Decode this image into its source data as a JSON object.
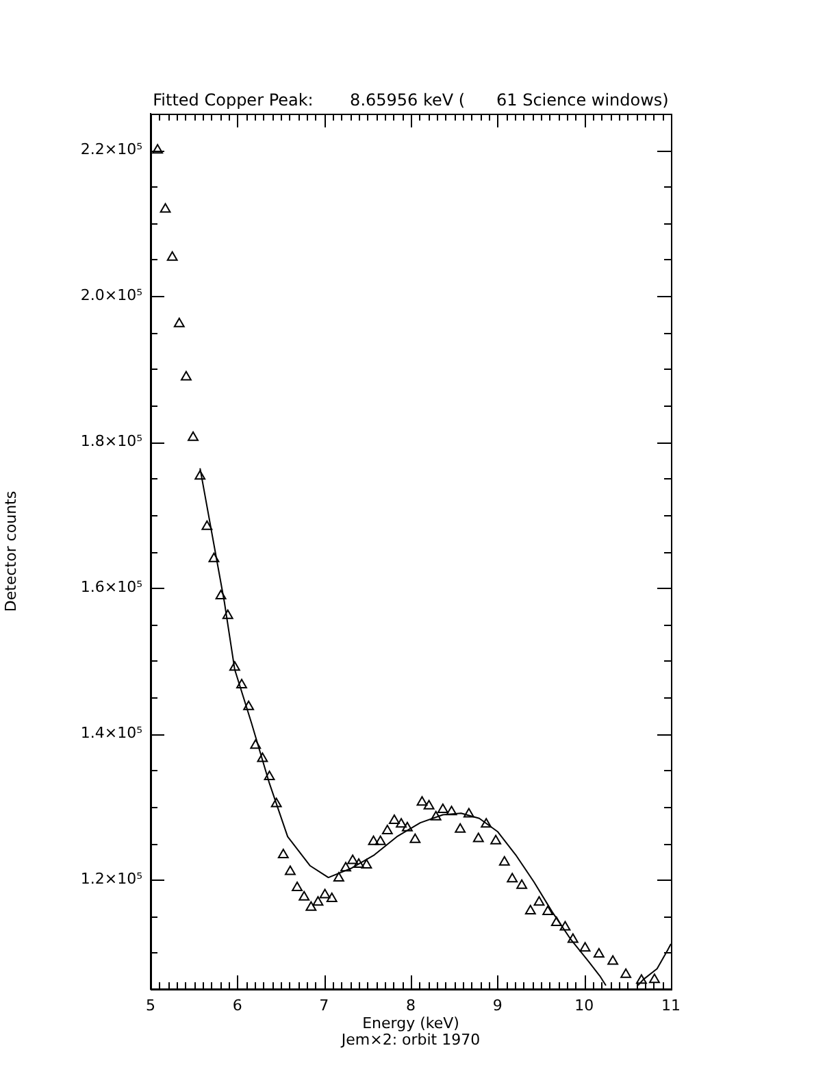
{
  "chart_data": {
    "type": "scatter",
    "title": "Fitted Copper Peak:       8.65956 keV (      61 Science windows)",
    "xlabel": "Energy (keV)",
    "ylabel": "Detector counts",
    "annotations": [
      "Jem×2: orbit 1970"
    ],
    "xlim": [
      5,
      11
    ],
    "ylim": [
      105000,
      225000
    ],
    "xticks": [
      5,
      {
        "value": 5.1,
        "label": null
      },
      {
        "value": 5.2,
        "label": null
      },
      {
        "value": 5.3,
        "label": null
      },
      {
        "value": 5.4,
        "label": null
      },
      {
        "value": 5.5,
        "label": null
      },
      {
        "value": 5.6,
        "label": null
      },
      {
        "value": 5.7,
        "label": null
      },
      {
        "value": 5.8,
        "label": null
      },
      {
        "value": 5.9,
        "label": null
      },
      6,
      {
        "value": 6.1,
        "label": null
      },
      {
        "value": 6.2,
        "label": null
      },
      {
        "value": 6.3,
        "label": null
      },
      {
        "value": 6.4,
        "label": null
      },
      {
        "value": 6.5,
        "label": null
      },
      {
        "value": 6.6,
        "label": null
      },
      {
        "value": 6.7,
        "label": null
      },
      {
        "value": 6.8,
        "label": null
      },
      {
        "value": 6.9,
        "label": null
      },
      7,
      {
        "value": 7.1,
        "label": null
      },
      {
        "value": 7.2,
        "label": null
      },
      {
        "value": 7.3,
        "label": null
      },
      {
        "value": 7.4,
        "label": null
      },
      {
        "value": 7.5,
        "label": null
      },
      {
        "value": 7.6,
        "label": null
      },
      {
        "value": 7.7,
        "label": null
      },
      {
        "value": 7.8,
        "label": null
      },
      {
        "value": 7.9,
        "label": null
      },
      8,
      {
        "value": 8.1,
        "label": null
      },
      {
        "value": 8.2,
        "label": null
      },
      {
        "value": 8.3,
        "label": null
      },
      {
        "value": 8.4,
        "label": null
      },
      {
        "value": 8.5,
        "label": null
      },
      {
        "value": 8.6,
        "label": null
      },
      {
        "value": 8.7,
        "label": null
      },
      {
        "value": 8.8,
        "label": null
      },
      {
        "value": 8.9,
        "label": null
      },
      9,
      {
        "value": 9.1,
        "label": null
      },
      {
        "value": 9.2,
        "label": null
      },
      {
        "value": 9.3,
        "label": null
      },
      {
        "value": 9.4,
        "label": null
      },
      {
        "value": 9.5,
        "label": null
      },
      {
        "value": 9.6,
        "label": null
      },
      {
        "value": 9.7,
        "label": null
      },
      {
        "value": 9.8,
        "label": null
      },
      {
        "value": 9.9,
        "label": null
      },
      10,
      {
        "value": 10.1,
        "label": null
      },
      {
        "value": 10.2,
        "label": null
      },
      {
        "value": 10.3,
        "label": null
      },
      {
        "value": 10.4,
        "label": null
      },
      {
        "value": 10.5,
        "label": null
      },
      {
        "value": 10.6,
        "label": null
      },
      {
        "value": 10.7,
        "label": null
      },
      {
        "value": 10.8,
        "label": null
      },
      {
        "value": 10.9,
        "label": null
      },
      11
    ],
    "yticks": [
      {
        "value": 110000,
        "label": null
      },
      {
        "value": 115000,
        "label": null
      },
      {
        "value": 120000,
        "label": "1.2×10⁵"
      },
      {
        "value": 125000,
        "label": null
      },
      {
        "value": 130000,
        "label": null
      },
      {
        "value": 135000,
        "label": null
      },
      {
        "value": 140000,
        "label": "1.4×10⁵"
      },
      {
        "value": 145000,
        "label": null
      },
      {
        "value": 150000,
        "label": null
      },
      {
        "value": 155000,
        "label": null
      },
      {
        "value": 160000,
        "label": "1.6×10⁵"
      },
      {
        "value": 165000,
        "label": null
      },
      {
        "value": 170000,
        "label": null
      },
      {
        "value": 175000,
        "label": null
      },
      {
        "value": 180000,
        "label": "1.8×10⁵"
      },
      {
        "value": 185000,
        "label": null
      },
      {
        "value": 190000,
        "label": null
      },
      {
        "value": 195000,
        "label": null
      },
      {
        "value": 200000,
        "label": "2.0×10⁵"
      },
      {
        "value": 205000,
        "label": null
      },
      {
        "value": 210000,
        "label": null
      },
      {
        "value": 215000,
        "label": null
      },
      {
        "value": 220000,
        "label": "2.2×10⁵"
      }
    ],
    "grid": false,
    "legend": false,
    "series": [
      {
        "type": "scatter",
        "marker": "triangle",
        "color": "#000000",
        "x": [
          5.08,
          5.17,
          5.25,
          5.33,
          5.41,
          5.49,
          5.57,
          5.65,
          5.73,
          5.81,
          5.89,
          5.97,
          6.05,
          6.13,
          6.21,
          6.29,
          6.37,
          6.45,
          6.53,
          6.61,
          6.69,
          6.77,
          6.85,
          6.93,
          7.01,
          7.09,
          7.17,
          7.25,
          7.33,
          7.4,
          7.49,
          7.57,
          7.65,
          7.73,
          7.81,
          7.89,
          7.96,
          8.05,
          8.13,
          8.21,
          8.29,
          8.37,
          8.47,
          8.57,
          8.67,
          8.78,
          8.87,
          8.98,
          9.08,
          9.17,
          9.28,
          9.38,
          9.48,
          9.58,
          9.68,
          9.78,
          9.87,
          10.01,
          10.17,
          10.33,
          10.48,
          10.66,
          10.81
        ],
        "values": [
          220000,
          211900,
          205300,
          196200,
          188900,
          180600,
          175300,
          168400,
          164000,
          158900,
          156200,
          149100,
          146700,
          143700,
          138400,
          136600,
          134100,
          130400,
          123400,
          121100,
          118900,
          117600,
          116200,
          116900,
          117900,
          117400,
          120200,
          121600,
          122600,
          122100,
          122000,
          125200,
          125200,
          126700,
          128100,
          127600,
          127100,
          125500,
          130600,
          130100,
          128600,
          129600,
          129300,
          126900,
          129000,
          125600,
          127600,
          125300,
          122400,
          120100,
          119200,
          115700,
          116900,
          115600,
          114100,
          113500,
          111800,
          110600,
          109800,
          108800,
          107000,
          106200,
          106300
        ]
      },
      {
        "type": "line",
        "marker": "none",
        "line_style": "solid",
        "color": "#000000",
        "x": [
          5.57,
          5.85,
          5.97,
          6.16,
          6.37,
          6.58,
          6.84,
          7.05,
          7.32,
          7.58,
          7.84,
          8.11,
          8.37,
          8.58,
          8.79,
          9.0,
          9.21,
          9.42,
          9.63,
          9.84,
          10.05,
          10.18,
          10.25,
          10.45,
          10.62,
          10.68,
          10.84,
          10.96,
          11.0
        ],
        "values": [
          176400,
          158100,
          148800,
          141600,
          133200,
          125900,
          121900,
          120300,
          121600,
          123400,
          125900,
          127800,
          128900,
          129100,
          128400,
          126600,
          123400,
          119700,
          115600,
          111900,
          108800,
          106800,
          105500,
          null,
          105500,
          106300,
          107800,
          110300,
          111200
        ]
      }
    ]
  }
}
